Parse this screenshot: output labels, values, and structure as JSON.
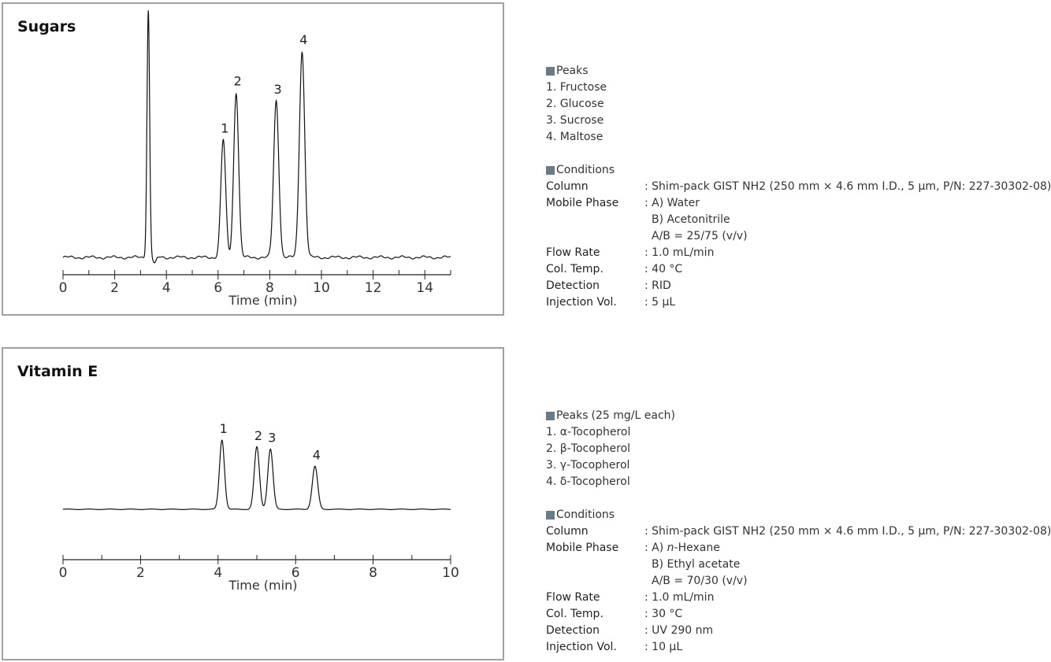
{
  "chart_data": [
    {
      "type": "line",
      "title": "Sugars",
      "xlabel": "Time (min)",
      "ylabel": "",
      "xlim": [
        0,
        15
      ],
      "x_ticks": [
        0,
        2,
        4,
        6,
        8,
        10,
        12,
        14
      ],
      "grid": false,
      "series": [
        {
          "peaks": [
            {
              "label": "",
              "time": 3.3,
              "height": 1.2
            },
            {
              "label": "1",
              "time": 6.2,
              "height": 0.57
            },
            {
              "label": "2",
              "time": 6.7,
              "height": 0.8
            },
            {
              "label": "3",
              "time": 8.25,
              "height": 0.76
            },
            {
              "label": "4",
              "time": 9.25,
              "height": 1.0
            }
          ]
        }
      ]
    },
    {
      "type": "line",
      "title": "Vitamin E",
      "xlabel": "Time (min)",
      "ylabel": "",
      "xlim": [
        0,
        10
      ],
      "x_ticks": [
        0,
        2,
        4,
        6,
        8,
        10
      ],
      "grid": false,
      "series": [
        {
          "peaks": [
            {
              "label": "1",
              "time": 4.1,
              "height": 1.0
            },
            {
              "label": "2",
              "time": 5.0,
              "height": 0.9
            },
            {
              "label": "3",
              "time": 5.35,
              "height": 0.87
            },
            {
              "label": "4",
              "time": 6.5,
              "height": 0.62
            }
          ]
        }
      ]
    }
  ],
  "info": [
    {
      "peaks_heading": "Peaks",
      "peaks_note": "",
      "peaks": [
        "1. Fructose",
        "2. Glucose",
        "3. Sucrose",
        "4. Maltose"
      ],
      "conditions_heading": "Conditions",
      "column_label": "Column",
      "column_value": ": Shim-pack GIST NH2 (250 mm × 4.6 mm I.D., 5 µm, P/N: 227-30302-08)",
      "mobile_label": "Mobile Phase",
      "mobile_a_prefix": ": A) ",
      "mobile_a_italic": "",
      "mobile_a_rest": "Water",
      "mobile_b": "B) Acetonitrile",
      "mobile_ratio": "A/B = 25/75 (v/v)",
      "flow_label": "Flow Rate",
      "flow_value": ": 1.0 mL/min",
      "temp_label": "Col. Temp.",
      "temp_value": ": 40 °C",
      "detection_label": "Detection",
      "detection_value": ": RID",
      "injection_label": "Injection Vol.",
      "injection_value": ": 5 µL"
    },
    {
      "peaks_heading": "Peaks",
      "peaks_note": "(25 mg/L each)",
      "peaks": [
        "1. α-Tocopherol",
        "2. β-Tocopherol",
        "3. γ-Tocopherol",
        "4. δ-Tocopherol"
      ],
      "conditions_heading": "Conditions",
      "column_label": "Column",
      "column_value": ": Shim-pack GIST NH2 (250 mm × 4.6 mm I.D., 5 µm, P/N: 227-30302-08)",
      "mobile_label": "Mobile Phase",
      "mobile_a_prefix": ": A) ",
      "mobile_a_italic": "n",
      "mobile_a_rest": "-Hexane",
      "mobile_b": "B) Ethyl acetate",
      "mobile_ratio": "A/B = 70/30 (v/v)",
      "flow_label": "Flow Rate",
      "flow_value": ": 1.0 mL/min",
      "temp_label": "Col. Temp.",
      "temp_value": ": 30 °C",
      "detection_label": "Detection",
      "detection_value": ": UV 290 nm",
      "injection_label": "Injection Vol.",
      "injection_value": ": 10 µL"
    }
  ]
}
